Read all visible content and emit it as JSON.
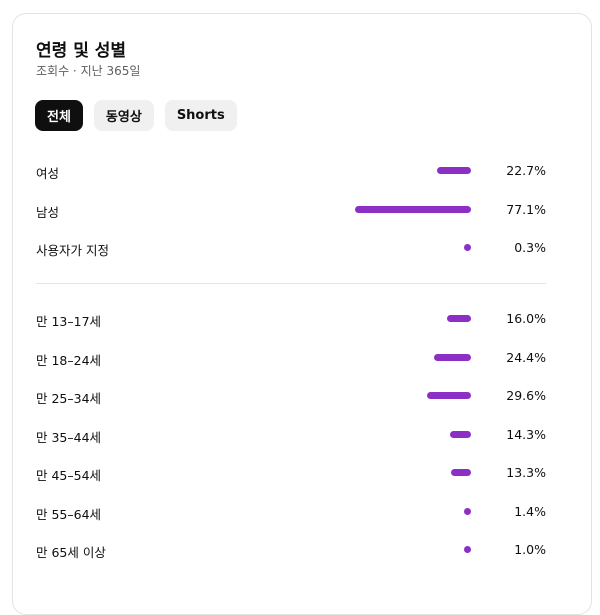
{
  "header": {
    "title": "연령 및 성별",
    "subtitle": "조회수 · 지난 365일"
  },
  "filters": [
    {
      "label": "전체",
      "active": true
    },
    {
      "label": "동영상",
      "active": false
    },
    {
      "label": "Shorts",
      "active": false
    }
  ],
  "bar_color": "#8c2fc4",
  "gender": [
    {
      "label": "여성",
      "percent": 22.7,
      "text": "22.7%"
    },
    {
      "label": "남성",
      "percent": 77.1,
      "text": "77.1%"
    },
    {
      "label": "사용자가 지정",
      "percent": 0.3,
      "text": "0.3%"
    }
  ],
  "age": [
    {
      "label": "만 13–17세",
      "percent": 16.0,
      "text": "16.0%"
    },
    {
      "label": "만 18–24세",
      "percent": 24.4,
      "text": "24.4%"
    },
    {
      "label": "만 25–34세",
      "percent": 29.6,
      "text": "29.6%"
    },
    {
      "label": "만 35–44세",
      "percent": 14.3,
      "text": "14.3%"
    },
    {
      "label": "만 45–54세",
      "percent": 13.3,
      "text": "13.3%"
    },
    {
      "label": "만 55–64세",
      "percent": 1.4,
      "text": "1.4%"
    },
    {
      "label": "만 65세 이상",
      "percent": 1.0,
      "text": "1.0%"
    }
  ]
}
